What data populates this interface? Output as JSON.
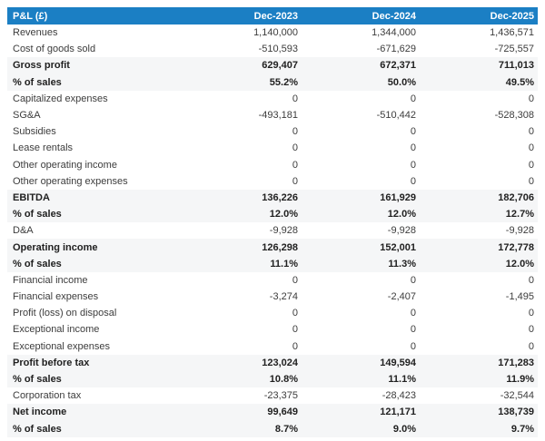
{
  "chart_data": {
    "type": "table",
    "title": "P&L (£)",
    "columns": [
      "Dec-2023",
      "Dec-2024",
      "Dec-2025"
    ],
    "rows": [
      {
        "label": "Revenues",
        "values": [
          "1,140,000",
          "1,344,000",
          "1,436,571"
        ],
        "emphasis": false
      },
      {
        "label": "Cost of goods sold",
        "values": [
          "-510,593",
          "-671,629",
          "-725,557"
        ],
        "emphasis": false
      },
      {
        "label": "Gross profit",
        "values": [
          "629,407",
          "672,371",
          "711,013"
        ],
        "emphasis": true
      },
      {
        "label": "% of sales",
        "values": [
          "55.2%",
          "50.0%",
          "49.5%"
        ],
        "emphasis": true
      },
      {
        "label": "Capitalized expenses",
        "values": [
          "0",
          "0",
          "0"
        ],
        "emphasis": false
      },
      {
        "label": "SG&A",
        "values": [
          "-493,181",
          "-510,442",
          "-528,308"
        ],
        "emphasis": false
      },
      {
        "label": "Subsidies",
        "values": [
          "0",
          "0",
          "0"
        ],
        "emphasis": false
      },
      {
        "label": "Lease rentals",
        "values": [
          "0",
          "0",
          "0"
        ],
        "emphasis": false
      },
      {
        "label": "Other operating income",
        "values": [
          "0",
          "0",
          "0"
        ],
        "emphasis": false
      },
      {
        "label": "Other operating expenses",
        "values": [
          "0",
          "0",
          "0"
        ],
        "emphasis": false
      },
      {
        "label": "EBITDA",
        "values": [
          "136,226",
          "161,929",
          "182,706"
        ],
        "emphasis": true
      },
      {
        "label": "% of sales",
        "values": [
          "12.0%",
          "12.0%",
          "12.7%"
        ],
        "emphasis": true
      },
      {
        "label": "D&A",
        "values": [
          "-9,928",
          "-9,928",
          "-9,928"
        ],
        "emphasis": false
      },
      {
        "label": "Operating income",
        "values": [
          "126,298",
          "152,001",
          "172,778"
        ],
        "emphasis": true
      },
      {
        "label": "% of sales",
        "values": [
          "11.1%",
          "11.3%",
          "12.0%"
        ],
        "emphasis": true
      },
      {
        "label": "Financial income",
        "values": [
          "0",
          "0",
          "0"
        ],
        "emphasis": false
      },
      {
        "label": "Financial expenses",
        "values": [
          "-3,274",
          "-2,407",
          "-1,495"
        ],
        "emphasis": false
      },
      {
        "label": "Profit (loss) on disposal",
        "values": [
          "0",
          "0",
          "0"
        ],
        "emphasis": false
      },
      {
        "label": "Exceptional income",
        "values": [
          "0",
          "0",
          "0"
        ],
        "emphasis": false
      },
      {
        "label": "Exceptional expenses",
        "values": [
          "0",
          "0",
          "0"
        ],
        "emphasis": false
      },
      {
        "label": "Profit before tax",
        "values": [
          "123,024",
          "149,594",
          "171,283"
        ],
        "emphasis": true
      },
      {
        "label": "% of sales",
        "values": [
          "10.8%",
          "11.1%",
          "11.9%"
        ],
        "emphasis": true
      },
      {
        "label": "Corporation tax",
        "values": [
          "-23,375",
          "-28,423",
          "-32,544"
        ],
        "emphasis": false
      },
      {
        "label": "Net income",
        "values": [
          "99,649",
          "121,171",
          "138,739"
        ],
        "emphasis": true
      },
      {
        "label": "% of sales",
        "values": [
          "8.7%",
          "9.0%",
          "9.7%"
        ],
        "emphasis": true
      }
    ]
  },
  "colors": {
    "header_bg": "#1b7fc4",
    "header_text": "#ffffff",
    "emphasis_row_bg": "#f5f6f7",
    "row_bg": "#ffffff",
    "row_text": "#3c3c3c",
    "emphasis_row_text": "#212121"
  }
}
